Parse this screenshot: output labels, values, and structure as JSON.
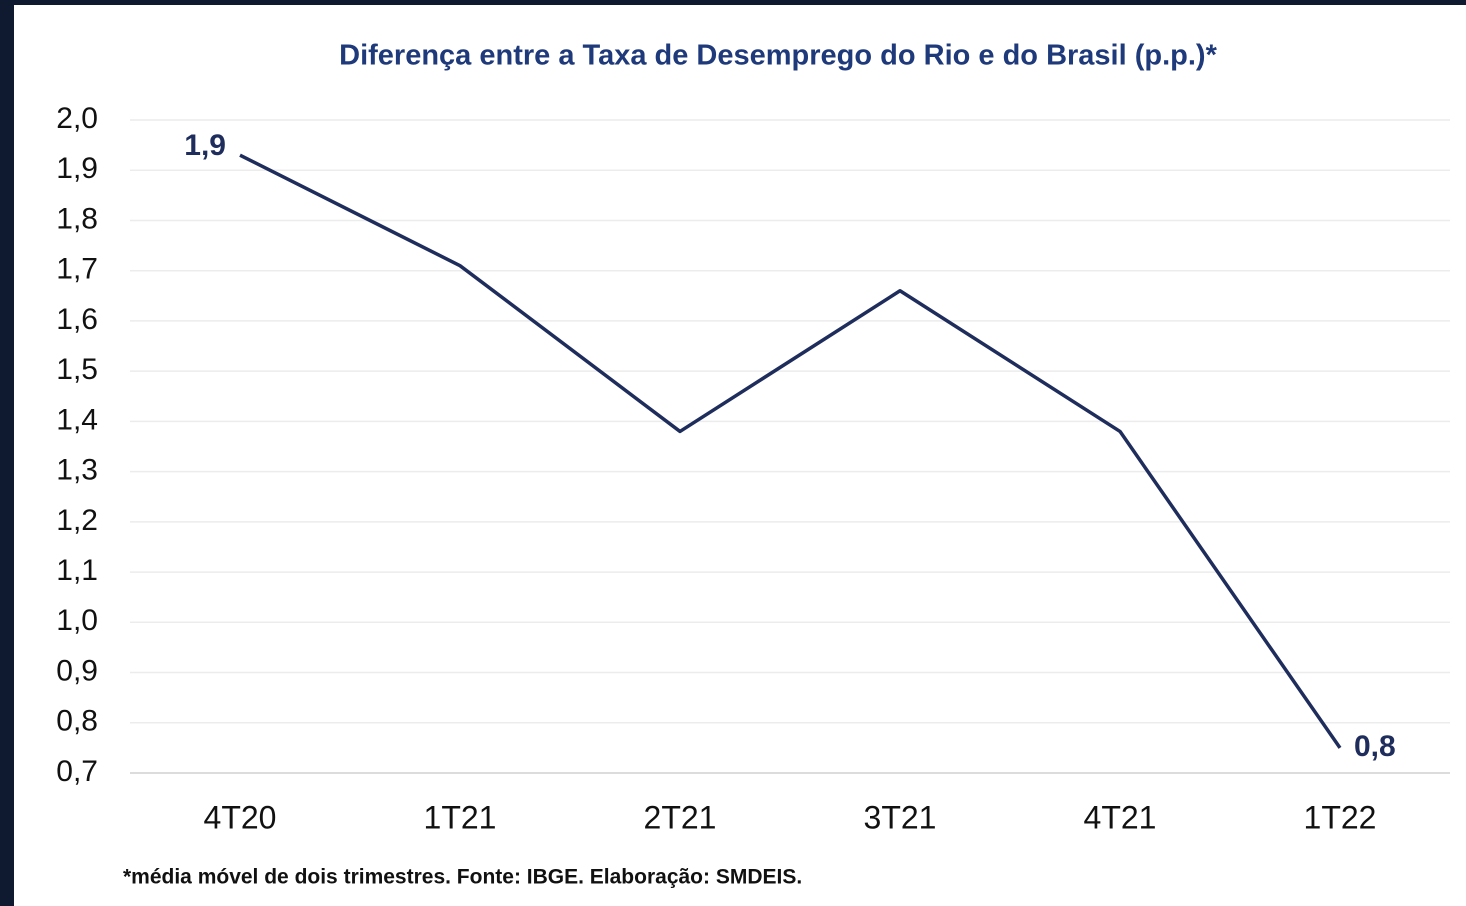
{
  "chart_data": {
    "type": "line",
    "title": "Diferença entre a Taxa de Desemprego do Rio e do Brasil (p.p.)*",
    "footnote": "*média móvel de dois trimestres. Fonte: IBGE. Elaboração: SMDEIS.",
    "categories": [
      "4T20",
      "1T21",
      "2T21",
      "3T21",
      "4T21",
      "1T22"
    ],
    "series": [
      {
        "name": "Diferença",
        "color": "#1f2d5c",
        "values": [
          1.93,
          1.71,
          1.38,
          1.66,
          1.38,
          0.75
        ],
        "value_labels": [
          "1,9",
          null,
          null,
          null,
          null,
          "0,8"
        ]
      }
    ],
    "ylim": [
      0.7,
      2.0
    ],
    "yticks": [
      {
        "value": 0.7,
        "label": "0,7"
      },
      {
        "value": 0.8,
        "label": "0,8"
      },
      {
        "value": 0.9,
        "label": "0,9"
      },
      {
        "value": 1.0,
        "label": "1,0"
      },
      {
        "value": 1.1,
        "label": "1,1"
      },
      {
        "value": 1.2,
        "label": "1,2"
      },
      {
        "value": 1.3,
        "label": "1,3"
      },
      {
        "value": 1.4,
        "label": "1,4"
      },
      {
        "value": 1.5,
        "label": "1,5"
      },
      {
        "value": 1.6,
        "label": "1,6"
      },
      {
        "value": 1.7,
        "label": "1,7"
      },
      {
        "value": 1.8,
        "label": "1,8"
      },
      {
        "value": 1.9,
        "label": "1,9"
      },
      {
        "value": 2.0,
        "label": "2,0"
      }
    ],
    "grid": true
  }
}
